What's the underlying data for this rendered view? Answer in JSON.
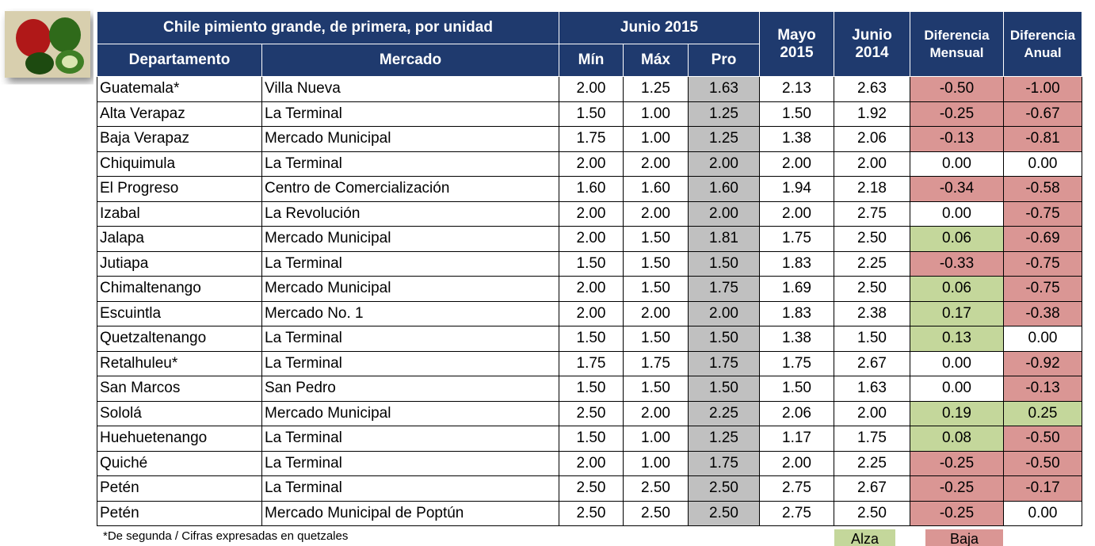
{
  "header": {
    "title": "Chile pimiento grande, de primera, por unidad",
    "group": "Junio 2015",
    "mayo": "Mayo 2015",
    "junio_prev": "Junio 2014",
    "dif_mensual": "Diferencia Mensual",
    "dif_anual": "Diferencia Anual",
    "columns": [
      "Departamento",
      "Mercado",
      "Mín",
      "Máx",
      "Pro"
    ]
  },
  "table": {
    "rows": [
      [
        "Guatemala*",
        "Villa Nueva",
        "2.00",
        "1.25",
        "1.63",
        "2.13",
        "2.63",
        "-0.50",
        "-1.00"
      ],
      [
        "Alta Verapaz",
        "La Terminal",
        "1.50",
        "1.00",
        "1.25",
        "1.50",
        "1.92",
        "-0.25",
        "-0.67"
      ],
      [
        "Baja Verapaz",
        "Mercado Municipal",
        "1.75",
        "1.00",
        "1.25",
        "1.38",
        "2.06",
        "-0.13",
        "-0.81"
      ],
      [
        "Chiquimula",
        "La Terminal",
        "2.00",
        "2.00",
        "2.00",
        "2.00",
        "2.00",
        "0.00",
        "0.00"
      ],
      [
        "El Progreso",
        "Centro de Comercialización",
        "1.60",
        "1.60",
        "1.60",
        "1.94",
        "2.18",
        "-0.34",
        "-0.58"
      ],
      [
        "Izabal",
        "La Revolución",
        "2.00",
        "2.00",
        "2.00",
        "2.00",
        "2.75",
        "0.00",
        "-0.75"
      ],
      [
        "Jalapa",
        "Mercado Municipal",
        "2.00",
        "1.50",
        "1.81",
        "1.75",
        "2.50",
        "0.06",
        "-0.69"
      ],
      [
        "Jutiapa",
        "La Terminal",
        "1.50",
        "1.50",
        "1.50",
        "1.83",
        "2.25",
        "-0.33",
        "-0.75"
      ],
      [
        "Chimaltenango",
        "Mercado Municipal",
        "2.00",
        "1.50",
        "1.75",
        "1.69",
        "2.50",
        "0.06",
        "-0.75"
      ],
      [
        "Escuintla",
        "Mercado No. 1",
        "2.00",
        "2.00",
        "2.00",
        "1.83",
        "2.38",
        "0.17",
        "-0.38"
      ],
      [
        "Quetzaltenango",
        "La Terminal",
        "1.50",
        "1.50",
        "1.50",
        "1.38",
        "1.50",
        "0.13",
        "0.00"
      ],
      [
        "Retalhuleu*",
        "La Terminal",
        "1.75",
        "1.75",
        "1.75",
        "1.75",
        "2.67",
        "0.00",
        "-0.92"
      ],
      [
        "San Marcos",
        "San Pedro",
        "1.50",
        "1.50",
        "1.50",
        "1.50",
        "1.63",
        "0.00",
        "-0.13"
      ],
      [
        "Sololá",
        "Mercado Municipal",
        "2.50",
        "2.00",
        "2.25",
        "2.06",
        "2.00",
        "0.19",
        "0.25"
      ],
      [
        "Huehuetenango",
        "La Terminal",
        "1.50",
        "1.00",
        "1.25",
        "1.17",
        "1.75",
        "0.08",
        "-0.50"
      ],
      [
        "Quiché",
        "La Terminal",
        "2.00",
        "1.00",
        "1.75",
        "2.00",
        "2.25",
        "-0.25",
        "-0.50"
      ],
      [
        "Petén",
        "La Terminal",
        "2.50",
        "2.50",
        "2.50",
        "2.75",
        "2.67",
        "-0.25",
        "-0.17"
      ],
      [
        "Petén",
        "Mercado Municipal de Poptún",
        "2.50",
        "2.50",
        "2.50",
        "2.75",
        "2.50",
        "-0.25",
        "0.00"
      ]
    ]
  },
  "footnote": "*De segunda / Cifras expresadas en quetzales",
  "legend": {
    "alza": "Alza",
    "baja": "Baja"
  }
}
